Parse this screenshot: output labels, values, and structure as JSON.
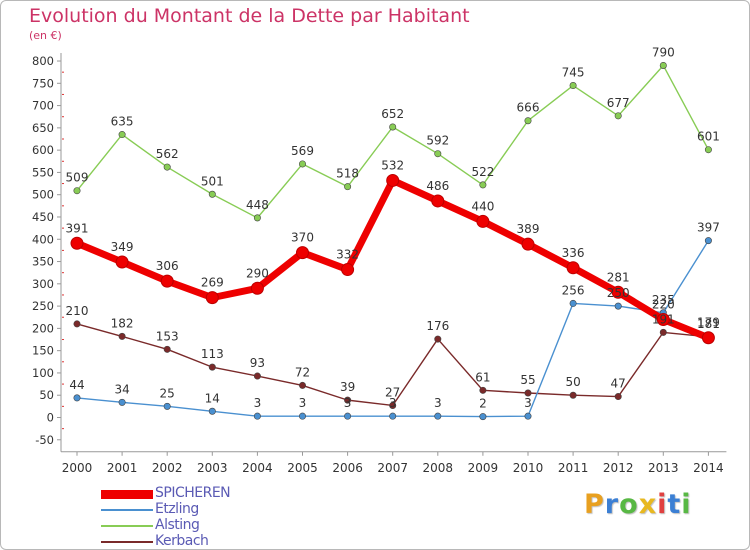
{
  "title": "Evolution du Montant de la Dette par Habitant",
  "subtitle": "(en €)",
  "logo_text": "Proxiti",
  "logo_colors": [
    "#e8a020",
    "#3b7fd4",
    "#58b844",
    "#e8b820",
    "#e04040",
    "#3b7fd4",
    "#58b844"
  ],
  "chart_data": {
    "type": "line",
    "x": [
      "2000",
      "2001",
      "2002",
      "2003",
      "2004",
      "2005",
      "2006",
      "2007",
      "2008",
      "2009",
      "2010",
      "2011",
      "2012",
      "2013",
      "2014"
    ],
    "ylim": [
      -50,
      800
    ],
    "yticks": [
      -50,
      0,
      50,
      100,
      150,
      200,
      250,
      300,
      350,
      400,
      450,
      500,
      550,
      600,
      650,
      700,
      750,
      800
    ],
    "grid": false,
    "legend_position": "bottom-left",
    "series": [
      {
        "name": "SPICHEREN",
        "color": "#ee0000",
        "values": [
          391,
          349,
          306,
          269,
          290,
          370,
          332,
          532,
          486,
          440,
          389,
          336,
          281,
          220,
          179
        ],
        "labels": [
          "391",
          "349",
          "306",
          "269",
          "290",
          "370",
          "332",
          "532",
          "486",
          "440",
          "389",
          "336",
          "281",
          "220",
          "179"
        ]
      },
      {
        "name": "Etzling",
        "color": "#4a90d0",
        "values": [
          44,
          34,
          25,
          14,
          3,
          3,
          3,
          3,
          3,
          2,
          3,
          256,
          250,
          235,
          397
        ],
        "labels": [
          "44",
          "34",
          "25",
          "14",
          "3",
          "3",
          "3",
          "3",
          "3",
          "2",
          "3",
          "256",
          "250",
          "235",
          "397"
        ]
      },
      {
        "name": "Alsting",
        "color": "#88cc55",
        "values": [
          509,
          635,
          562,
          501,
          448,
          569,
          518,
          652,
          592,
          522,
          666,
          745,
          677,
          790,
          601
        ],
        "labels": [
          "509",
          "635",
          "562",
          "501",
          "448",
          "569",
          "518",
          "652",
          "592",
          "522",
          "666",
          "745",
          "677",
          "790",
          "601"
        ]
      },
      {
        "name": "Kerbach",
        "color": "#7a2a2a",
        "values": [
          210,
          182,
          153,
          113,
          93,
          72,
          39,
          27,
          176,
          61,
          55,
          50,
          47,
          191,
          181
        ],
        "labels": [
          "210",
          "182",
          "153",
          "113",
          "93",
          "72",
          "39",
          "27",
          "176",
          "61",
          "55",
          "50",
          "47",
          "191",
          "181"
        ]
      }
    ]
  }
}
